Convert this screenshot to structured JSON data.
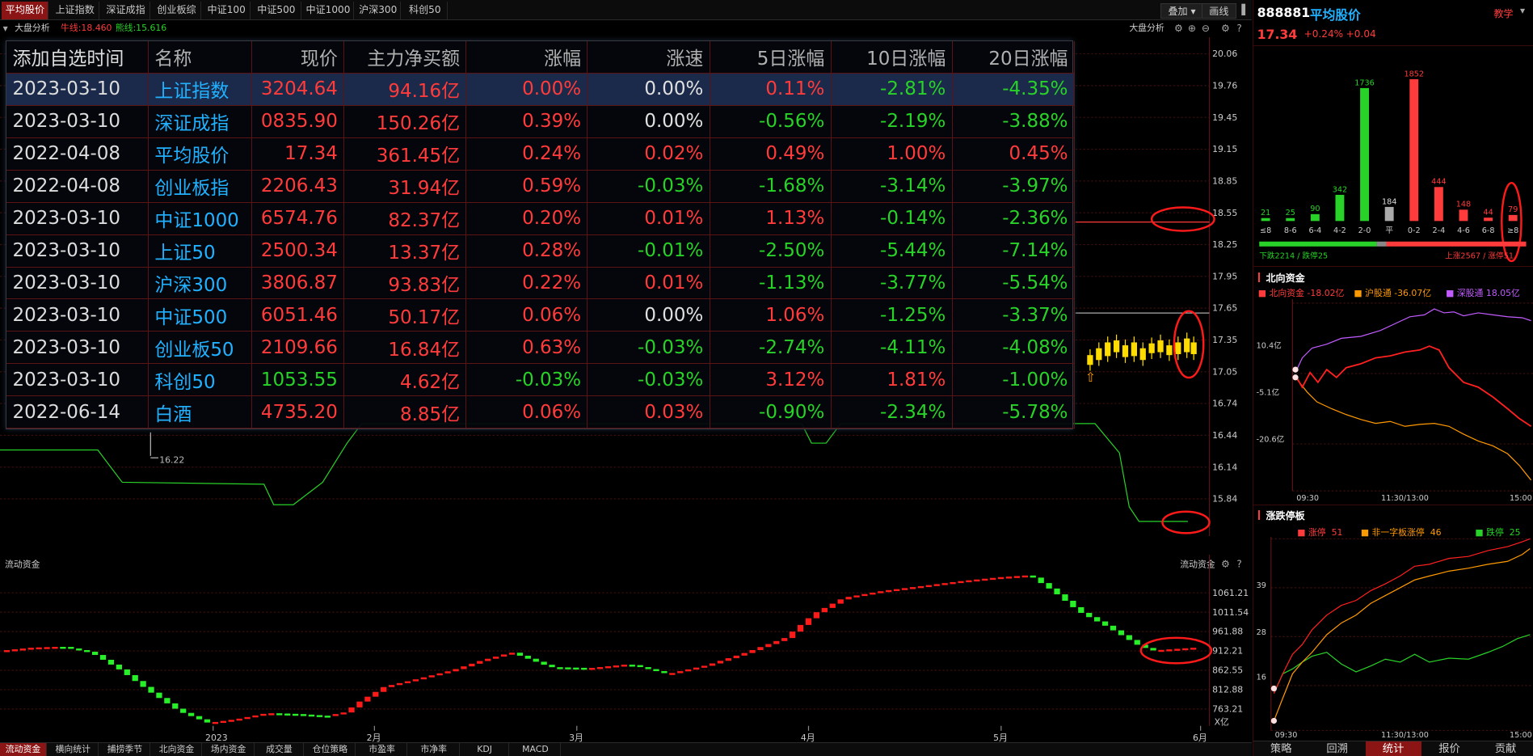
{
  "top_tabs": [
    {
      "label": "平均股价",
      "active": true
    },
    {
      "label": "上证指数"
    },
    {
      "label": "深证成指"
    },
    {
      "label": "创业板综"
    },
    {
      "label": "中证100"
    },
    {
      "label": "中证500"
    },
    {
      "label": "中证1000"
    },
    {
      "label": "沪深300"
    },
    {
      "label": "科创50"
    }
  ],
  "top_buttons": {
    "overlay": "叠加",
    "draw": "画线"
  },
  "analysis": {
    "label": "大盘分析",
    "ma_label": "牛线:18.460",
    "bear_label": "熊线:15.616",
    "right_label": "大盘分析"
  },
  "price_axis": [
    "20.06",
    "19.76",
    "19.45",
    "19.15",
    "18.85",
    "18.55",
    "18.25",
    "17.95",
    "17.65",
    "17.35",
    "17.05",
    "16.74",
    "16.44",
    "16.14",
    "15.84"
  ],
  "low_marker": "16.22",
  "watchlist": {
    "headers": [
      "添加自选时间",
      "名称",
      "现价",
      "主力净买额",
      "涨幅",
      "涨速",
      "5日涨幅",
      "10日涨幅",
      "20日涨幅"
    ],
    "rows": [
      {
        "date": "2023-03-10",
        "name": "上证指数",
        "price": "3204.64",
        "net": "94.16亿",
        "chg": "0.00%",
        "speed": "0.00%",
        "d5": "0.11%",
        "d10": "-2.81%",
        "d20": "-4.35%",
        "c": [
          "r",
          "r",
          "r",
          "w",
          "r",
          "g",
          "g"
        ],
        "selected": true
      },
      {
        "date": "2023-03-10",
        "name": "深证成指",
        "price": "0835.90",
        "net": "150.26亿",
        "chg": "0.39%",
        "speed": "0.00%",
        "d5": "-0.56%",
        "d10": "-2.19%",
        "d20": "-3.88%",
        "c": [
          "r",
          "r",
          "r",
          "w",
          "g",
          "g",
          "g"
        ]
      },
      {
        "date": "2022-04-08",
        "name": "平均股价",
        "price": "17.34",
        "net": "361.45亿",
        "chg": "0.24%",
        "speed": "0.02%",
        "d5": "0.49%",
        "d10": "1.00%",
        "d20": "0.45%",
        "c": [
          "r",
          "r",
          "r",
          "r",
          "r",
          "r",
          "r"
        ]
      },
      {
        "date": "2022-04-08",
        "name": "创业板指",
        "price": "2206.43",
        "net": "31.94亿",
        "chg": "0.59%",
        "speed": "-0.03%",
        "d5": "-1.68%",
        "d10": "-3.14%",
        "d20": "-3.97%",
        "c": [
          "r",
          "r",
          "r",
          "g",
          "g",
          "g",
          "g"
        ]
      },
      {
        "date": "2023-03-10",
        "name": "中证1000",
        "price": "6574.76",
        "net": "82.37亿",
        "chg": "0.20%",
        "speed": "0.01%",
        "d5": "1.13%",
        "d10": "-0.14%",
        "d20": "-2.36%",
        "c": [
          "r",
          "r",
          "r",
          "r",
          "r",
          "g",
          "g"
        ]
      },
      {
        "date": "2023-03-10",
        "name": "上证50",
        "price": "2500.34",
        "net": "13.37亿",
        "chg": "0.28%",
        "speed": "-0.01%",
        "d5": "-2.50%",
        "d10": "-5.44%",
        "d20": "-7.14%",
        "c": [
          "r",
          "r",
          "r",
          "g",
          "g",
          "g",
          "g"
        ]
      },
      {
        "date": "2023-03-10",
        "name": "沪深300",
        "price": "3806.87",
        "net": "93.83亿",
        "chg": "0.22%",
        "speed": "0.01%",
        "d5": "-1.13%",
        "d10": "-3.77%",
        "d20": "-5.54%",
        "c": [
          "r",
          "r",
          "r",
          "r",
          "g",
          "g",
          "g"
        ]
      },
      {
        "date": "2023-03-10",
        "name": "中证500",
        "price": "6051.46",
        "net": "50.17亿",
        "chg": "0.06%",
        "speed": "0.00%",
        "d5": "1.06%",
        "d10": "-1.25%",
        "d20": "-3.37%",
        "c": [
          "r",
          "r",
          "r",
          "w",
          "r",
          "g",
          "g"
        ]
      },
      {
        "date": "2023-03-10",
        "name": "创业板50",
        "price": "2109.66",
        "net": "16.84亿",
        "chg": "0.63%",
        "speed": "-0.03%",
        "d5": "-2.74%",
        "d10": "-4.11%",
        "d20": "-4.08%",
        "c": [
          "r",
          "r",
          "r",
          "g",
          "g",
          "g",
          "g"
        ]
      },
      {
        "date": "2023-03-10",
        "name": "科创50",
        "price": "1053.55",
        "net": "4.62亿",
        "chg": "-0.03%",
        "speed": "-0.03%",
        "d5": "3.12%",
        "d10": "1.81%",
        "d20": "-1.00%",
        "c": [
          "g",
          "r",
          "g",
          "g",
          "r",
          "r",
          "g"
        ]
      },
      {
        "date": "2022-06-14",
        "name": "白酒",
        "price": "4735.20",
        "net": "8.85亿",
        "chg": "0.06%",
        "speed": "0.03%",
        "d5": "-0.90%",
        "d10": "-2.34%",
        "d20": "-5.78%",
        "c": [
          "r",
          "r",
          "r",
          "r",
          "g",
          "g",
          "g"
        ]
      }
    ]
  },
  "flow": {
    "title": "流动资金",
    "right_title": "流动资金",
    "axis": [
      "1061.21",
      "1011.54",
      "961.88",
      "912.21",
      "862.55",
      "812.88",
      "763.21"
    ],
    "unit": "X亿",
    "months": [
      "2023",
      "2月",
      "3月",
      "4月",
      "5月",
      "6月"
    ]
  },
  "bottom_tabs": [
    "流动资金",
    "横向统计",
    "捕捞季节",
    "北向资金",
    "场内资金",
    "成交量",
    "仓位策略",
    "市盈率",
    "市净率",
    "KDJ",
    "MACD"
  ],
  "right": {
    "code": "888881",
    "name": "平均股价",
    "teach": "教学",
    "price": "17.34",
    "pct": "+0.24%",
    "change": "+0.04",
    "dist": {
      "categories": [
        "≤8",
        "8-6",
        "6-4",
        "4-2",
        "2-0",
        "平",
        "0-2",
        "2-4",
        "4-6",
        "6-8",
        "≥8"
      ],
      "values": [
        21,
        25,
        90,
        342,
        1736,
        184,
        1852,
        444,
        148,
        44,
        79
      ],
      "down": "下跌2214 / 跌停25",
      "up": "上涨2567 / 涨停51"
    },
    "north": {
      "title": "北向资金",
      "series": [
        {
          "name": "北向资金",
          "value": "-18.02亿"
        },
        {
          "name": "沪股通",
          "value": "-36.07亿"
        },
        {
          "name": "深股通",
          "value": "18.05亿"
        }
      ],
      "axis": [
        "10.4亿",
        "-5.1亿",
        "-20.6亿"
      ],
      "times": [
        "09:30",
        "11:30/13:00",
        "15:00"
      ]
    },
    "limit": {
      "title": "涨跌停板",
      "series": [
        {
          "name": "涨停",
          "value": "51"
        },
        {
          "name": "非一字板涨停",
          "value": "46"
        },
        {
          "name": "跌停",
          "value": "25"
        }
      ],
      "axis": [
        "39",
        "28",
        "16"
      ],
      "times": [
        "09:30",
        "11:30/13:00",
        "15:00"
      ]
    },
    "tabs": [
      "策略",
      "回溯",
      "统计",
      "报价",
      "贡献"
    ]
  },
  "colors": {
    "up": "#ff3b3b",
    "down": "#28d228",
    "name": "#21b1ff",
    "grid": "#3a0e0e",
    "accent": "#8b1414"
  }
}
